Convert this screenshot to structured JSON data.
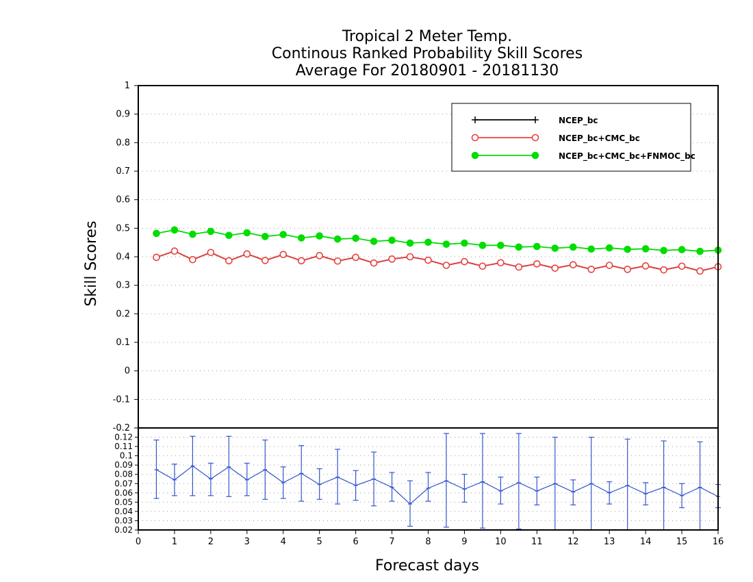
{
  "chart_data": [
    {
      "type": "line",
      "title_lines": [
        "Tropical 2 Meter Temp.",
        "Continous Ranked Probability Skill Scores",
        "Average For 20180901 - 20181130"
      ],
      "ylabel": "Skill Scores",
      "ylim": [
        -0.2,
        1
      ],
      "yticks": [
        "-0.2",
        "-0.1",
        "0",
        "0.1",
        "0.2",
        "0.3",
        "0.4",
        "0.5",
        "0.6",
        "0.7",
        "0.8",
        "0.9",
        "1"
      ],
      "grid": true,
      "legend_position": "top-right",
      "x": [
        0.5,
        1,
        1.5,
        2,
        2.5,
        3,
        3.5,
        4,
        4.5,
        5,
        5.5,
        6,
        6.5,
        7,
        7.5,
        8,
        8.5,
        9,
        9.5,
        10,
        10.5,
        11,
        11.5,
        12,
        12.5,
        13,
        13.5,
        14,
        14.5,
        15,
        15.5,
        16
      ],
      "series": [
        {
          "name": "NCEP_bc",
          "color": "#000000",
          "marker": "plus",
          "values": [
            0.398,
            0.42,
            0.39,
            0.415,
            0.386,
            0.41,
            0.387,
            0.408,
            0.386,
            0.404,
            0.385,
            0.398,
            0.378,
            0.392,
            0.4,
            0.388,
            0.37,
            0.383,
            0.367,
            0.379,
            0.364,
            0.375,
            0.36,
            0.372,
            0.356,
            0.37,
            0.356,
            0.368,
            0.354,
            0.367,
            0.35,
            0.365
          ]
        },
        {
          "name": "NCEP_bc+CMC_bc",
          "color": "#e8413e",
          "marker": "open-circle",
          "values": [
            0.398,
            0.42,
            0.39,
            0.415,
            0.386,
            0.41,
            0.387,
            0.408,
            0.386,
            0.404,
            0.385,
            0.398,
            0.378,
            0.392,
            0.4,
            0.388,
            0.37,
            0.383,
            0.367,
            0.379,
            0.364,
            0.375,
            0.36,
            0.372,
            0.356,
            0.37,
            0.356,
            0.368,
            0.354,
            0.367,
            0.35,
            0.365
          ]
        },
        {
          "name": "NCEP_bc+CMC_bc+FNMOC_bc",
          "color": "#00dd00",
          "marker": "filled-circle",
          "values": [
            0.482,
            0.494,
            0.479,
            0.489,
            0.475,
            0.484,
            0.471,
            0.478,
            0.466,
            0.473,
            0.462,
            0.465,
            0.454,
            0.458,
            0.448,
            0.451,
            0.444,
            0.448,
            0.44,
            0.44,
            0.434,
            0.436,
            0.43,
            0.434,
            0.427,
            0.431,
            0.426,
            0.428,
            0.422,
            0.425,
            0.419,
            0.423
          ]
        }
      ]
    },
    {
      "type": "line",
      "xlabel": "Forecast days",
      "xlim": [
        0,
        16
      ],
      "xticks": [
        "0",
        "1",
        "2",
        "3",
        "4",
        "5",
        "6",
        "7",
        "8",
        "9",
        "10",
        "11",
        "12",
        "13",
        "14",
        "15",
        "16"
      ],
      "ylim": [
        0.02,
        0.13
      ],
      "yticks": [
        "0.02",
        "0.03",
        "0.04",
        "0.05",
        "0.06",
        "0.07",
        "0.08",
        "0.09",
        "0.1",
        "0.11",
        "0.12"
      ],
      "grid": true,
      "series": [
        {
          "color": "#3355cc",
          "marker": "error-bar",
          "x": [
            0.5,
            1,
            1.5,
            2,
            2.5,
            3,
            3.5,
            4,
            4.5,
            5,
            5.5,
            6,
            6.5,
            7,
            7.5,
            8,
            8.5,
            9,
            9.5,
            10,
            10.5,
            11,
            11.5,
            12,
            12.5,
            13,
            13.5,
            14,
            14.5,
            15,
            15.5,
            16
          ],
          "values": [
            0.085,
            0.074,
            0.089,
            0.075,
            0.088,
            0.074,
            0.085,
            0.071,
            0.081,
            0.069,
            0.077,
            0.068,
            0.075,
            0.066,
            0.048,
            0.065,
            0.073,
            0.064,
            0.072,
            0.062,
            0.071,
            0.062,
            0.07,
            0.061,
            0.07,
            0.06,
            0.068,
            0.059,
            0.066,
            0.057,
            0.066,
            0.056
          ],
          "lower": [
            0.054,
            0.057,
            0.057,
            0.057,
            0.056,
            0.057,
            0.053,
            0.054,
            0.051,
            0.053,
            0.048,
            0.052,
            0.046,
            0.051,
            0.024,
            0.051,
            0.023,
            0.05,
            0.022,
            0.048,
            0.021,
            0.047,
            0.02,
            0.047,
            0.02,
            0.048,
            0.02,
            0.047,
            0.02,
            0.044,
            0.02,
            0.044
          ],
          "upper": [
            0.117,
            0.091,
            0.121,
            0.092,
            0.121,
            0.092,
            0.117,
            0.088,
            0.111,
            0.086,
            0.107,
            0.084,
            0.104,
            0.082,
            0.073,
            0.082,
            0.124,
            0.08,
            0.124,
            0.077,
            0.124,
            0.077,
            0.12,
            0.074,
            0.12,
            0.072,
            0.118,
            0.071,
            0.116,
            0.07,
            0.115,
            0.069
          ]
        }
      ]
    }
  ]
}
